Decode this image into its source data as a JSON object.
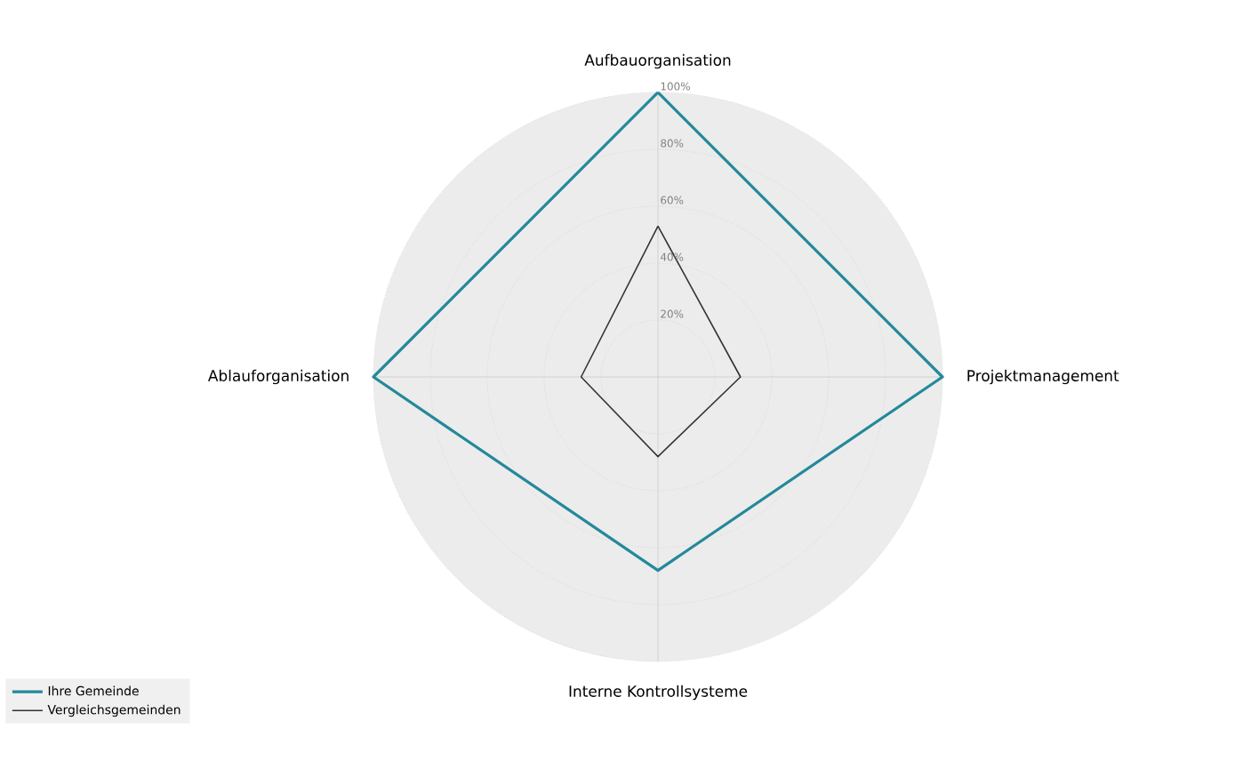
{
  "chart_data": {
    "type": "radar",
    "categories": [
      "Aufbauorganisation",
      "Projektmanagement",
      "Interne Kontrollsysteme",
      "Ablauforganisation"
    ],
    "series": [
      {
        "name": "Ihre Gemeinde",
        "color": "#23899a",
        "values": [
          100,
          100,
          68,
          100
        ]
      },
      {
        "name": "Vergleichsgemeinden",
        "color": "#333333",
        "values": [
          53,
          29,
          28,
          27
        ]
      }
    ],
    "ylim": [
      0,
      100
    ],
    "yticks": [
      {
        "value": 20,
        "label": "20%"
      },
      {
        "value": 40,
        "label": "40%"
      },
      {
        "value": 60,
        "label": "60%"
      },
      {
        "value": 80,
        "label": "80%"
      },
      {
        "value": 100,
        "label": "100%"
      }
    ],
    "grid": true,
    "legend": "bottom left",
    "marker": "none"
  }
}
